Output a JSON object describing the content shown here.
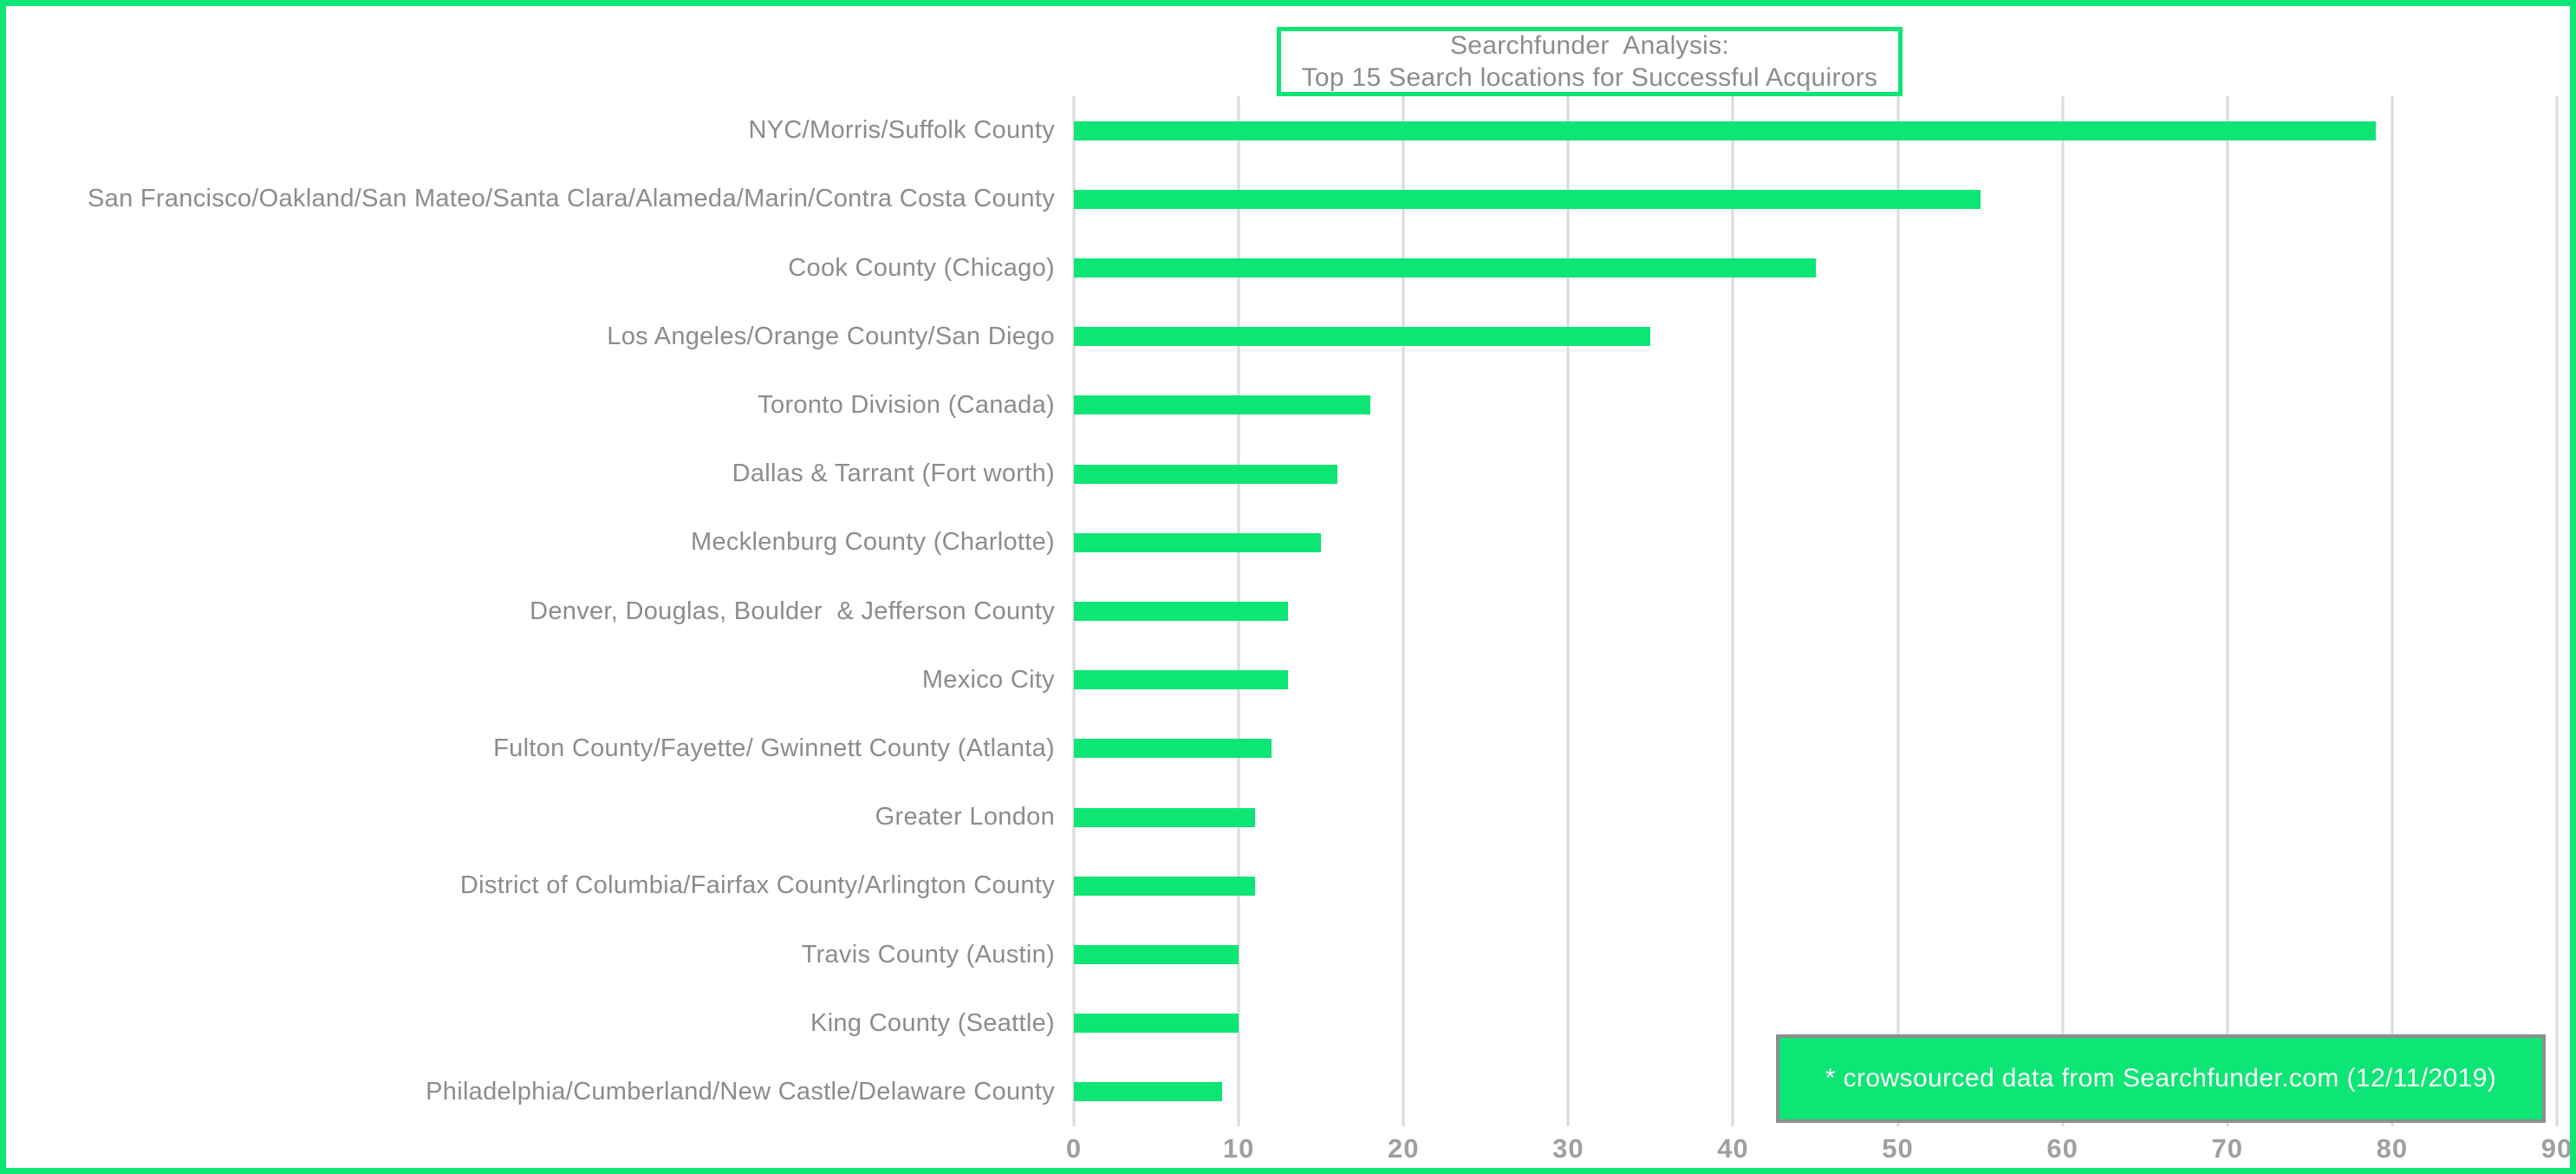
{
  "chart_data": {
    "type": "bar",
    "orientation": "horizontal",
    "title_lines": [
      "Searchfunder  Analysis:",
      "Top 15 Search locations for Successful Acquirors"
    ],
    "categories": [
      "NYC/Morris/Suffolk County",
      "San Francisco/Oakland/San Mateo/Santa Clara/Alameda/Marin/Contra Costa County",
      "Cook County (Chicago)",
      "Los Angeles/Orange County/San Diego",
      "Toronto Division (Canada)",
      "Dallas & Tarrant (Fort worth)",
      "Mecklenburg County (Charlotte)",
      "Denver, Douglas, Boulder  & Jefferson County",
      "Mexico City",
      "Fulton County/Fayette/ Gwinnett County (Atlanta)",
      "Greater London",
      "District of Columbia/Fairfax County/Arlington County",
      "Travis County (Austin)",
      "King County (Seattle)",
      "Philadelphia/Cumberland/New Castle/Delaware County"
    ],
    "values": [
      79,
      55,
      45,
      35,
      18,
      16,
      15,
      13,
      13,
      12,
      11,
      11,
      10,
      10,
      9
    ],
    "xlim": [
      0,
      90
    ],
    "xticks": [
      0,
      10,
      20,
      30,
      40,
      50,
      60,
      70,
      80,
      90
    ],
    "grid": true,
    "legend": "none",
    "note": "* crowsourced data from Searchfunder.com (12/11/2019)"
  },
  "colors": {
    "accent_green": "#0de574",
    "gridline_gray": "#dadada",
    "label_gray": "#8c8c8c",
    "tick_gray": "#9f9f9f",
    "note_border_gray": "#8e8e8e",
    "note_text": "#ffffff"
  }
}
